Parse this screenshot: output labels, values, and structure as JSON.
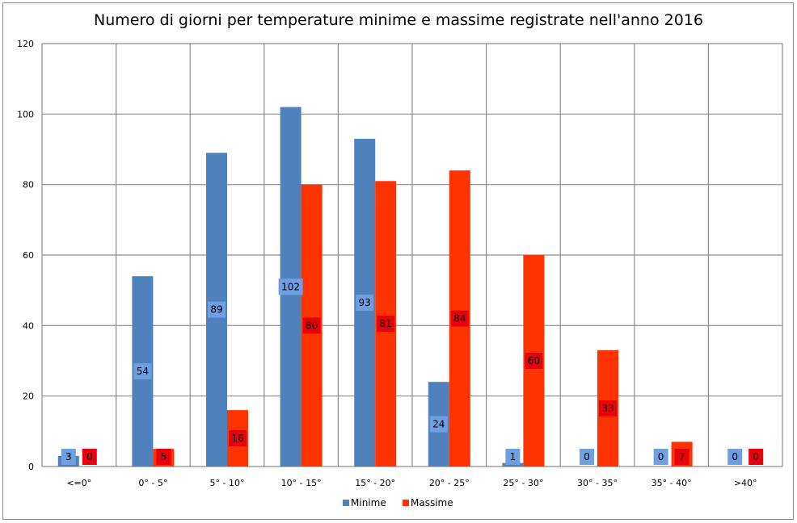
{
  "chart_data": {
    "type": "bar",
    "title": "Numero di giorni per temperature minime e massime registrate nell'anno 2016",
    "categories": [
      "<=0°",
      "0° - 5°",
      "5° - 10°",
      "10° - 15°",
      "15° - 20°",
      "20° - 25°",
      "25° - 30°",
      "30° - 35°",
      "35° - 40°",
      ">40°"
    ],
    "series": [
      {
        "name": "Minime",
        "values": [
          3,
          54,
          89,
          102,
          93,
          24,
          1,
          0,
          0,
          0
        ]
      },
      {
        "name": "Massime",
        "values": [
          0,
          5,
          16,
          80,
          81,
          84,
          60,
          33,
          7,
          0
        ]
      }
    ],
    "ylim": [
      0,
      120
    ],
    "yticks": [
      "0",
      "20",
      "40",
      "60",
      "80",
      "100",
      "120"
    ],
    "grid": true,
    "legend_position": "bottom",
    "colors": {
      "Minime": "#4f81bd",
      "Massime": "#ff3300",
      "minime_label_bg": "#6f9fe0",
      "massime_label_bg": "#e8000c",
      "grid": "#8c8c8c"
    }
  }
}
